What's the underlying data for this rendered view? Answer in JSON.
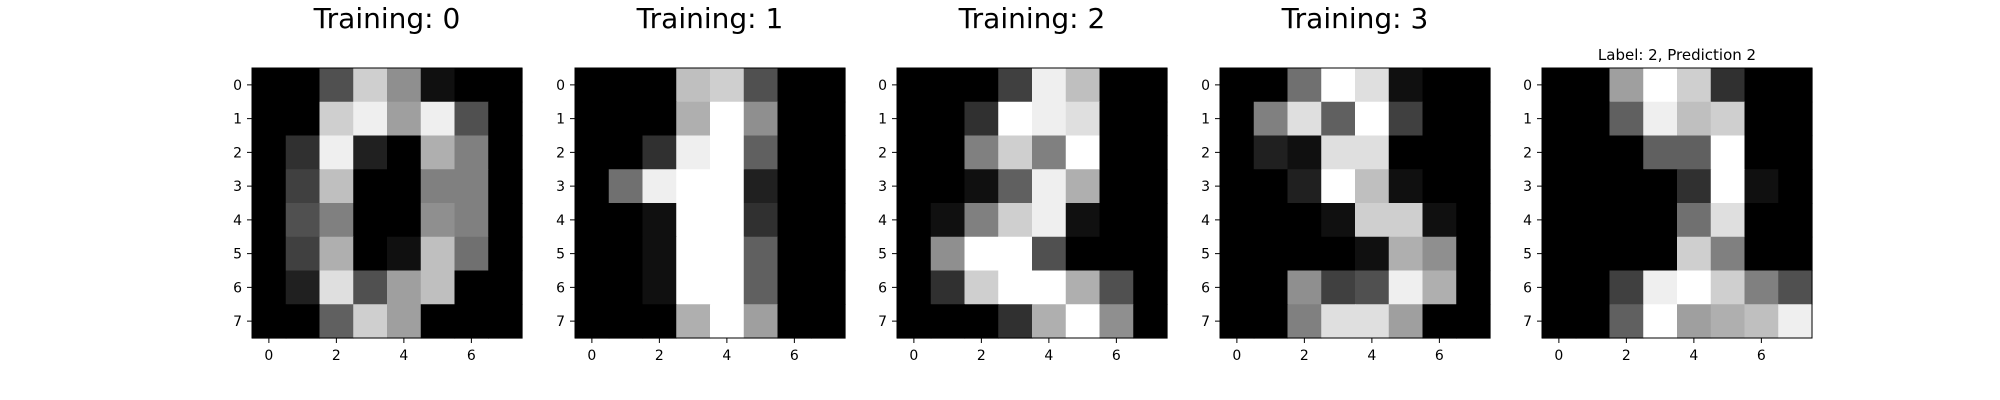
{
  "chart_data": [
    {
      "type": "heatmap",
      "title": "Training: 0",
      "colormap": "gray",
      "value_range": [
        0,
        16
      ],
      "x_ticks": [
        0,
        2,
        4,
        6
      ],
      "y_ticks": [
        0,
        1,
        2,
        3,
        4,
        5,
        6,
        7
      ],
      "values": [
        [
          0,
          0,
          5,
          13,
          9,
          1,
          0,
          0
        ],
        [
          0,
          0,
          13,
          15,
          10,
          15,
          5,
          0
        ],
        [
          0,
          3,
          15,
          2,
          0,
          11,
          8,
          0
        ],
        [
          0,
          4,
          12,
          0,
          0,
          8,
          8,
          0
        ],
        [
          0,
          5,
          8,
          0,
          0,
          9,
          8,
          0
        ],
        [
          0,
          4,
          11,
          0,
          1,
          12,
          7,
          0
        ],
        [
          0,
          2,
          14,
          5,
          10,
          12,
          0,
          0
        ],
        [
          0,
          0,
          6,
          13,
          10,
          0,
          0,
          0
        ]
      ]
    },
    {
      "type": "heatmap",
      "title": "Training: 1",
      "colormap": "gray",
      "value_range": [
        0,
        16
      ],
      "x_ticks": [
        0,
        2,
        4,
        6
      ],
      "y_ticks": [
        0,
        1,
        2,
        3,
        4,
        5,
        6,
        7
      ],
      "values": [
        [
          0,
          0,
          0,
          12,
          13,
          5,
          0,
          0
        ],
        [
          0,
          0,
          0,
          11,
          16,
          9,
          0,
          0
        ],
        [
          0,
          0,
          3,
          15,
          16,
          6,
          0,
          0
        ],
        [
          0,
          7,
          15,
          16,
          16,
          2,
          0,
          0
        ],
        [
          0,
          0,
          1,
          16,
          16,
          3,
          0,
          0
        ],
        [
          0,
          0,
          1,
          16,
          16,
          6,
          0,
          0
        ],
        [
          0,
          0,
          1,
          16,
          16,
          6,
          0,
          0
        ],
        [
          0,
          0,
          0,
          11,
          16,
          10,
          0,
          0
        ]
      ]
    },
    {
      "type": "heatmap",
      "title": "Training: 2",
      "colormap": "gray",
      "value_range": [
        0,
        16
      ],
      "x_ticks": [
        0,
        2,
        4,
        6
      ],
      "y_ticks": [
        0,
        1,
        2,
        3,
        4,
        5,
        6,
        7
      ],
      "values": [
        [
          0,
          0,
          0,
          4,
          15,
          12,
          0,
          0
        ],
        [
          0,
          0,
          3,
          16,
          15,
          14,
          0,
          0
        ],
        [
          0,
          0,
          8,
          13,
          8,
          16,
          0,
          0
        ],
        [
          0,
          0,
          1,
          6,
          15,
          11,
          0,
          0
        ],
        [
          0,
          1,
          8,
          13,
          15,
          1,
          0,
          0
        ],
        [
          0,
          9,
          16,
          16,
          5,
          0,
          0,
          0
        ],
        [
          0,
          3,
          13,
          16,
          16,
          11,
          5,
          0
        ],
        [
          0,
          0,
          0,
          3,
          11,
          16,
          9,
          0
        ]
      ]
    },
    {
      "type": "heatmap",
      "title": "Training: 3",
      "colormap": "gray",
      "value_range": [
        0,
        16
      ],
      "x_ticks": [
        0,
        2,
        4,
        6
      ],
      "y_ticks": [
        0,
        1,
        2,
        3,
        4,
        5,
        6,
        7
      ],
      "values": [
        [
          0,
          0,
          7,
          16,
          14,
          1,
          0,
          0
        ],
        [
          0,
          8,
          14,
          6,
          16,
          4,
          0,
          0
        ],
        [
          0,
          2,
          1,
          14,
          14,
          0,
          0,
          0
        ],
        [
          0,
          0,
          2,
          16,
          12,
          1,
          0,
          0
        ],
        [
          0,
          0,
          0,
          1,
          13,
          13,
          1,
          0
        ],
        [
          0,
          0,
          0,
          0,
          1,
          11,
          9,
          0
        ],
        [
          0,
          0,
          9,
          4,
          5,
          15,
          11,
          0
        ],
        [
          0,
          0,
          8,
          14,
          14,
          10,
          0,
          0
        ]
      ]
    },
    {
      "type": "heatmap",
      "title": "Label: 2, Prediction 2",
      "colormap": "gray",
      "value_range": [
        0,
        16
      ],
      "x_ticks": [
        0,
        2,
        4,
        6
      ],
      "y_ticks": [
        0,
        1,
        2,
        3,
        4,
        5,
        6,
        7
      ],
      "values": [
        [
          0,
          0,
          10,
          16,
          13,
          3,
          0,
          0
        ],
        [
          0,
          0,
          6,
          15,
          12,
          13,
          0,
          0
        ],
        [
          0,
          0,
          0,
          6,
          6,
          16,
          0,
          0
        ],
        [
          0,
          0,
          0,
          0,
          3,
          16,
          1,
          0
        ],
        [
          0,
          0,
          0,
          0,
          7,
          14,
          0,
          0
        ],
        [
          0,
          0,
          0,
          0,
          13,
          8,
          0,
          0
        ],
        [
          0,
          0,
          4,
          15,
          16,
          13,
          8,
          5
        ],
        [
          0,
          0,
          6,
          16,
          10,
          11,
          12,
          15
        ]
      ]
    }
  ]
}
